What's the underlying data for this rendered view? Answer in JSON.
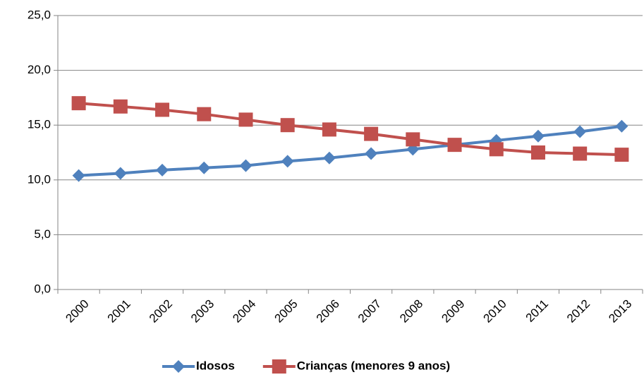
{
  "chart_data": {
    "type": "line",
    "categories": [
      "2000",
      "2001",
      "2002",
      "2003",
      "2004",
      "2005",
      "2006",
      "2007",
      "2008",
      "2009",
      "2010",
      "2011",
      "2012",
      "2013"
    ],
    "series": [
      {
        "name": "Idosos",
        "color": "#4f81bd",
        "marker": "diamond",
        "values": [
          10.4,
          10.6,
          10.9,
          11.1,
          11.3,
          11.7,
          12.0,
          12.4,
          12.8,
          13.2,
          13.6,
          14.0,
          14.4,
          14.9
        ]
      },
      {
        "name": "Crianças (menores 9 anos)",
        "color": "#c0504d",
        "marker": "square",
        "values": [
          17.0,
          16.7,
          16.4,
          16.0,
          15.5,
          15.0,
          14.6,
          14.2,
          13.7,
          13.2,
          12.8,
          12.5,
          12.4,
          12.3
        ]
      }
    ],
    "ylim": [
      0,
      25
    ],
    "yticks": [
      {
        "value": 0,
        "label": "0,0"
      },
      {
        "value": 5,
        "label": "5,0"
      },
      {
        "value": 10,
        "label": "10,0"
      },
      {
        "value": 15,
        "label": "15,0"
      },
      {
        "value": 20,
        "label": "20,0"
      },
      {
        "value": 25,
        "label": "25,0"
      }
    ],
    "grid": true,
    "legend": "bottom"
  }
}
